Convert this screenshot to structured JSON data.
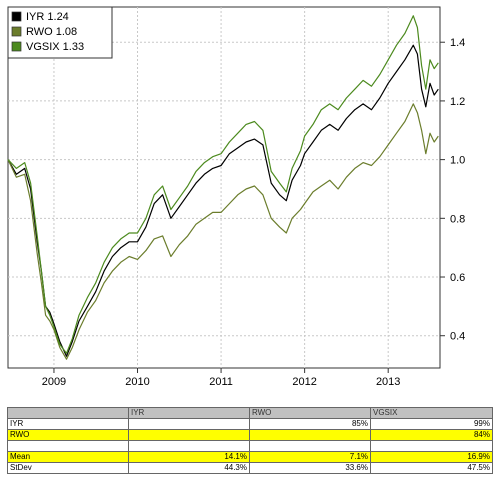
{
  "chart_data": {
    "type": "line",
    "title": "",
    "xlabel": "",
    "ylabel": "",
    "x_range": [
      2008.45,
      2013.62
    ],
    "ylim": [
      0.29,
      1.52
    ],
    "x_ticks": [
      {
        "label": "2009",
        "value": 2009.0
      },
      {
        "label": "2010",
        "value": 2010.0
      },
      {
        "label": "2011",
        "value": 2011.0
      },
      {
        "label": "2012",
        "value": 2012.0
      },
      {
        "label": "2013",
        "value": 2013.0
      }
    ],
    "y_ticks": [
      0.4,
      0.6,
      0.8,
      1.0,
      1.2,
      1.4
    ],
    "grid": true,
    "legend_position": "top-left",
    "series": [
      {
        "name": "IYR",
        "legend_label": "IYR 1.24",
        "color": "#000000",
        "points": [
          [
            2008.45,
            1.0
          ],
          [
            2008.55,
            0.95
          ],
          [
            2008.65,
            0.97
          ],
          [
            2008.72,
            0.9
          ],
          [
            2008.8,
            0.72
          ],
          [
            2008.85,
            0.62
          ],
          [
            2008.9,
            0.5
          ],
          [
            2008.95,
            0.48
          ],
          [
            2009.0,
            0.44
          ],
          [
            2009.07,
            0.38
          ],
          [
            2009.15,
            0.33
          ],
          [
            2009.22,
            0.38
          ],
          [
            2009.3,
            0.45
          ],
          [
            2009.4,
            0.5
          ],
          [
            2009.5,
            0.55
          ],
          [
            2009.6,
            0.62
          ],
          [
            2009.7,
            0.67
          ],
          [
            2009.8,
            0.7
          ],
          [
            2009.9,
            0.72
          ],
          [
            2010.0,
            0.72
          ],
          [
            2010.1,
            0.77
          ],
          [
            2010.2,
            0.85
          ],
          [
            2010.3,
            0.88
          ],
          [
            2010.4,
            0.8
          ],
          [
            2010.5,
            0.84
          ],
          [
            2010.6,
            0.88
          ],
          [
            2010.7,
            0.92
          ],
          [
            2010.8,
            0.95
          ],
          [
            2010.9,
            0.97
          ],
          [
            2011.0,
            0.98
          ],
          [
            2011.1,
            1.02
          ],
          [
            2011.2,
            1.04
          ],
          [
            2011.3,
            1.06
          ],
          [
            2011.4,
            1.07
          ],
          [
            2011.5,
            1.05
          ],
          [
            2011.6,
            0.92
          ],
          [
            2011.7,
            0.88
          ],
          [
            2011.78,
            0.86
          ],
          [
            2011.85,
            0.93
          ],
          [
            2011.95,
            0.98
          ],
          [
            2012.0,
            1.02
          ],
          [
            2012.1,
            1.06
          ],
          [
            2012.2,
            1.1
          ],
          [
            2012.3,
            1.12
          ],
          [
            2012.4,
            1.1
          ],
          [
            2012.5,
            1.14
          ],
          [
            2012.6,
            1.17
          ],
          [
            2012.7,
            1.19
          ],
          [
            2012.8,
            1.17
          ],
          [
            2012.9,
            1.21
          ],
          [
            2013.0,
            1.26
          ],
          [
            2013.1,
            1.3
          ],
          [
            2013.2,
            1.34
          ],
          [
            2013.3,
            1.39
          ],
          [
            2013.35,
            1.36
          ],
          [
            2013.4,
            1.24
          ],
          [
            2013.45,
            1.18
          ],
          [
            2013.5,
            1.26
          ],
          [
            2013.55,
            1.22
          ],
          [
            2013.6,
            1.24
          ]
        ]
      },
      {
        "name": "RWO",
        "legend_label": "RWO 1.08",
        "color": "#6b7d2c",
        "points": [
          [
            2008.45,
            1.0
          ],
          [
            2008.55,
            0.94
          ],
          [
            2008.65,
            0.95
          ],
          [
            2008.72,
            0.86
          ],
          [
            2008.8,
            0.68
          ],
          [
            2008.85,
            0.58
          ],
          [
            2008.9,
            0.47
          ],
          [
            2008.95,
            0.45
          ],
          [
            2009.0,
            0.42
          ],
          [
            2009.07,
            0.36
          ],
          [
            2009.15,
            0.32
          ],
          [
            2009.22,
            0.36
          ],
          [
            2009.3,
            0.42
          ],
          [
            2009.4,
            0.48
          ],
          [
            2009.5,
            0.52
          ],
          [
            2009.6,
            0.58
          ],
          [
            2009.7,
            0.62
          ],
          [
            2009.8,
            0.65
          ],
          [
            2009.9,
            0.67
          ],
          [
            2010.0,
            0.66
          ],
          [
            2010.1,
            0.69
          ],
          [
            2010.2,
            0.73
          ],
          [
            2010.3,
            0.74
          ],
          [
            2010.4,
            0.67
          ],
          [
            2010.5,
            0.71
          ],
          [
            2010.6,
            0.74
          ],
          [
            2010.7,
            0.78
          ],
          [
            2010.8,
            0.8
          ],
          [
            2010.9,
            0.82
          ],
          [
            2011.0,
            0.82
          ],
          [
            2011.1,
            0.85
          ],
          [
            2011.2,
            0.88
          ],
          [
            2011.3,
            0.9
          ],
          [
            2011.4,
            0.91
          ],
          [
            2011.5,
            0.88
          ],
          [
            2011.6,
            0.8
          ],
          [
            2011.7,
            0.77
          ],
          [
            2011.78,
            0.75
          ],
          [
            2011.85,
            0.8
          ],
          [
            2011.95,
            0.83
          ],
          [
            2012.0,
            0.85
          ],
          [
            2012.1,
            0.89
          ],
          [
            2012.2,
            0.91
          ],
          [
            2012.3,
            0.93
          ],
          [
            2012.4,
            0.9
          ],
          [
            2012.5,
            0.94
          ],
          [
            2012.6,
            0.97
          ],
          [
            2012.7,
            0.99
          ],
          [
            2012.8,
            0.98
          ],
          [
            2012.9,
            1.01
          ],
          [
            2013.0,
            1.05
          ],
          [
            2013.1,
            1.09
          ],
          [
            2013.2,
            1.13
          ],
          [
            2013.3,
            1.19
          ],
          [
            2013.35,
            1.16
          ],
          [
            2013.4,
            1.1
          ],
          [
            2013.45,
            1.02
          ],
          [
            2013.5,
            1.09
          ],
          [
            2013.55,
            1.06
          ],
          [
            2013.6,
            1.08
          ]
        ]
      },
      {
        "name": "VGSIX",
        "legend_label": "VGSIX 1.33",
        "color": "#4c8a1e",
        "points": [
          [
            2008.45,
            1.0
          ],
          [
            2008.55,
            0.97
          ],
          [
            2008.65,
            0.99
          ],
          [
            2008.72,
            0.92
          ],
          [
            2008.8,
            0.74
          ],
          [
            2008.85,
            0.62
          ],
          [
            2008.9,
            0.5
          ],
          [
            2008.95,
            0.47
          ],
          [
            2009.0,
            0.43
          ],
          [
            2009.07,
            0.37
          ],
          [
            2009.15,
            0.34
          ],
          [
            2009.22,
            0.39
          ],
          [
            2009.3,
            0.47
          ],
          [
            2009.4,
            0.53
          ],
          [
            2009.5,
            0.58
          ],
          [
            2009.6,
            0.65
          ],
          [
            2009.7,
            0.7
          ],
          [
            2009.8,
            0.73
          ],
          [
            2009.9,
            0.75
          ],
          [
            2010.0,
            0.75
          ],
          [
            2010.1,
            0.8
          ],
          [
            2010.2,
            0.88
          ],
          [
            2010.3,
            0.91
          ],
          [
            2010.4,
            0.83
          ],
          [
            2010.5,
            0.87
          ],
          [
            2010.6,
            0.91
          ],
          [
            2010.7,
            0.96
          ],
          [
            2010.8,
            0.99
          ],
          [
            2010.9,
            1.01
          ],
          [
            2011.0,
            1.02
          ],
          [
            2011.1,
            1.06
          ],
          [
            2011.2,
            1.09
          ],
          [
            2011.3,
            1.12
          ],
          [
            2011.4,
            1.13
          ],
          [
            2011.5,
            1.1
          ],
          [
            2011.6,
            0.96
          ],
          [
            2011.7,
            0.92
          ],
          [
            2011.78,
            0.89
          ],
          [
            2011.85,
            0.97
          ],
          [
            2011.95,
            1.03
          ],
          [
            2012.0,
            1.08
          ],
          [
            2012.1,
            1.12
          ],
          [
            2012.2,
            1.17
          ],
          [
            2012.3,
            1.19
          ],
          [
            2012.4,
            1.17
          ],
          [
            2012.5,
            1.21
          ],
          [
            2012.6,
            1.24
          ],
          [
            2012.7,
            1.27
          ],
          [
            2012.8,
            1.25
          ],
          [
            2012.9,
            1.29
          ],
          [
            2013.0,
            1.34
          ],
          [
            2013.1,
            1.39
          ],
          [
            2013.2,
            1.43
          ],
          [
            2013.3,
            1.49
          ],
          [
            2013.35,
            1.45
          ],
          [
            2013.4,
            1.32
          ],
          [
            2013.45,
            1.24
          ],
          [
            2013.5,
            1.34
          ],
          [
            2013.55,
            1.31
          ],
          [
            2013.6,
            1.33
          ]
        ]
      }
    ],
    "table": {
      "headers": [
        "",
        "IYR",
        "RWO",
        "VGSIX"
      ],
      "rows": [
        {
          "label": "IYR",
          "highlight": false,
          "cells": [
            "",
            "85%",
            "99%"
          ]
        },
        {
          "label": "RWO",
          "highlight": true,
          "cells": [
            "",
            "",
            "84%"
          ]
        },
        {
          "label": "",
          "highlight": false,
          "cells": [
            "",
            "",
            ""
          ]
        },
        {
          "label": "Mean",
          "highlight": true,
          "cells": [
            "14.1%",
            "7.1%",
            "16.9%"
          ]
        },
        {
          "label": "StDev",
          "highlight": false,
          "cells": [
            "44.3%",
            "33.6%",
            "47.5%"
          ]
        }
      ]
    }
  }
}
